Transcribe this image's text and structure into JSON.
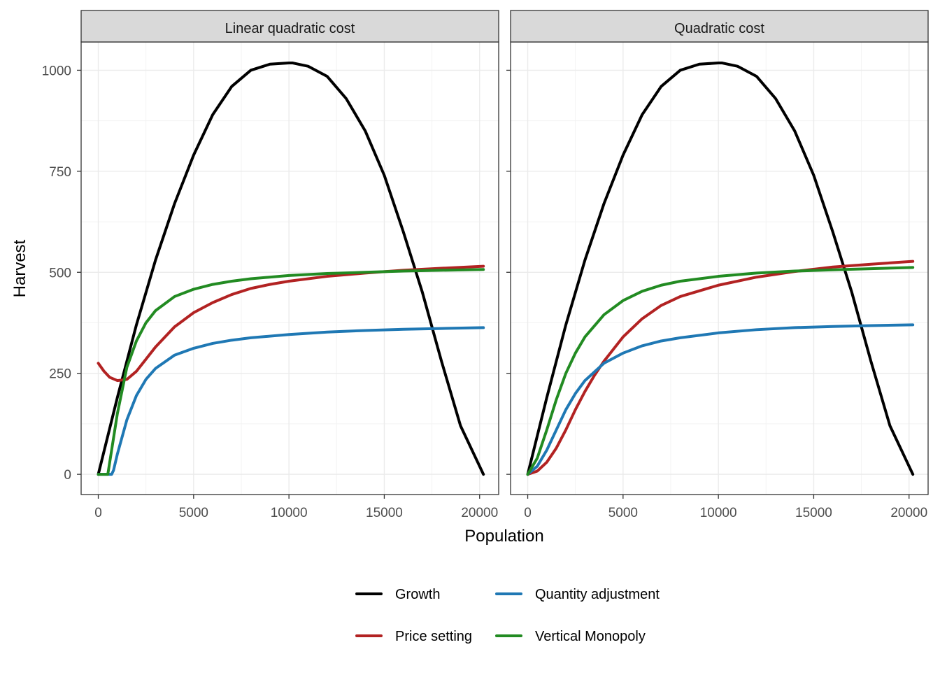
{
  "chart_data": [
    {
      "type": "line",
      "panel_title": "Linear quadratic cost",
      "xlabel": "Population",
      "ylabel": "Harvest",
      "xlim": [
        -900,
        21000
      ],
      "ylim": [
        -50,
        1070
      ],
      "x_ticks": [
        0,
        5000,
        10000,
        15000,
        20000
      ],
      "y_ticks": [
        0,
        250,
        500,
        750,
        1000
      ],
      "grid": true,
      "legend": "bottom",
      "series": [
        {
          "name": "Growth",
          "color": "#000000",
          "x": [
            0,
            1000,
            2000,
            3000,
            4000,
            5000,
            6000,
            7000,
            8000,
            9000,
            10000,
            10200,
            11000,
            12000,
            13000,
            14000,
            15000,
            16000,
            17000,
            18000,
            19000,
            20000,
            20200
          ],
          "y": [
            0,
            190,
            370,
            530,
            670,
            790,
            890,
            960,
            1000,
            1015,
            1018,
            1018,
            1010,
            985,
            930,
            850,
            740,
            600,
            450,
            280,
            120,
            20,
            0
          ]
        },
        {
          "name": "Price setting",
          "color": "#b22222",
          "x": [
            0,
            300,
            600,
            1000,
            1500,
            2000,
            2500,
            3000,
            4000,
            5000,
            6000,
            7000,
            8000,
            9000,
            10000,
            12000,
            14000,
            16000,
            18000,
            20200
          ],
          "y": [
            275,
            255,
            240,
            232,
            235,
            255,
            285,
            315,
            365,
            400,
            425,
            445,
            460,
            470,
            478,
            490,
            498,
            505,
            510,
            515
          ]
        },
        {
          "name": "Quantity adjustment",
          "color": "#1f78b4",
          "x": [
            0,
            700,
            800,
            1000,
            1500,
            2000,
            2500,
            3000,
            4000,
            5000,
            6000,
            7000,
            8000,
            10000,
            12000,
            14000,
            16000,
            18000,
            20200
          ],
          "y": [
            0,
            0,
            10,
            50,
            135,
            195,
            235,
            262,
            295,
            312,
            324,
            332,
            338,
            346,
            352,
            356,
            359,
            361,
            363
          ]
        },
        {
          "name": "Vertical Monopoly",
          "color": "#228b22",
          "x": [
            0,
            500,
            700,
            1000,
            1500,
            2000,
            2500,
            3000,
            4000,
            5000,
            6000,
            7000,
            8000,
            10000,
            12000,
            14000,
            16000,
            18000,
            20200
          ],
          "y": [
            0,
            0,
            60,
            150,
            265,
            330,
            375,
            405,
            440,
            458,
            470,
            478,
            484,
            492,
            497,
            500,
            503,
            505,
            507
          ]
        }
      ]
    },
    {
      "type": "line",
      "panel_title": "Quadratic cost",
      "xlabel": "Population",
      "ylabel": "Harvest",
      "xlim": [
        -900,
        21000
      ],
      "ylim": [
        -50,
        1070
      ],
      "x_ticks": [
        0,
        5000,
        10000,
        15000,
        20000
      ],
      "y_ticks": [
        0,
        250,
        500,
        750,
        1000
      ],
      "grid": true,
      "legend": "bottom",
      "series": [
        {
          "name": "Growth",
          "color": "#000000",
          "x": [
            0,
            1000,
            2000,
            3000,
            4000,
            5000,
            6000,
            7000,
            8000,
            9000,
            10000,
            10200,
            11000,
            12000,
            13000,
            14000,
            15000,
            16000,
            17000,
            18000,
            19000,
            20000,
            20200
          ],
          "y": [
            0,
            190,
            370,
            530,
            670,
            790,
            890,
            960,
            1000,
            1015,
            1018,
            1018,
            1010,
            985,
            930,
            850,
            740,
            600,
            450,
            280,
            120,
            20,
            0
          ]
        },
        {
          "name": "Price setting",
          "color": "#b22222",
          "x": [
            0,
            500,
            1000,
            1500,
            2000,
            2500,
            3000,
            3500,
            4000,
            5000,
            6000,
            7000,
            8000,
            10000,
            12000,
            14000,
            16000,
            18000,
            20200
          ],
          "y": [
            0,
            8,
            30,
            65,
            110,
            160,
            205,
            245,
            280,
            340,
            385,
            418,
            440,
            468,
            488,
            502,
            513,
            520,
            527
          ]
        },
        {
          "name": "Quantity adjustment",
          "color": "#1f78b4",
          "x": [
            0,
            500,
            1000,
            1500,
            2000,
            2500,
            3000,
            4000,
            5000,
            6000,
            7000,
            8000,
            10000,
            12000,
            14000,
            16000,
            18000,
            20200
          ],
          "y": [
            0,
            20,
            60,
            110,
            160,
            200,
            232,
            275,
            300,
            318,
            330,
            338,
            350,
            358,
            363,
            366,
            368,
            370
          ]
        },
        {
          "name": "Vertical Monopoly",
          "color": "#228b22",
          "x": [
            0,
            500,
            1000,
            1500,
            2000,
            2500,
            3000,
            4000,
            5000,
            6000,
            7000,
            8000,
            10000,
            12000,
            14000,
            16000,
            18000,
            20200
          ],
          "y": [
            0,
            40,
            110,
            185,
            250,
            300,
            340,
            395,
            430,
            453,
            468,
            478,
            490,
            498,
            503,
            506,
            509,
            512
          ]
        }
      ]
    }
  ],
  "legend": {
    "items": [
      {
        "label": "Growth",
        "color": "#000000"
      },
      {
        "label": "Quantity adjustment",
        "color": "#1f78b4"
      },
      {
        "label": "Price setting",
        "color": "#b22222"
      },
      {
        "label": "Vertical Monopoly",
        "color": "#228b22"
      }
    ]
  }
}
